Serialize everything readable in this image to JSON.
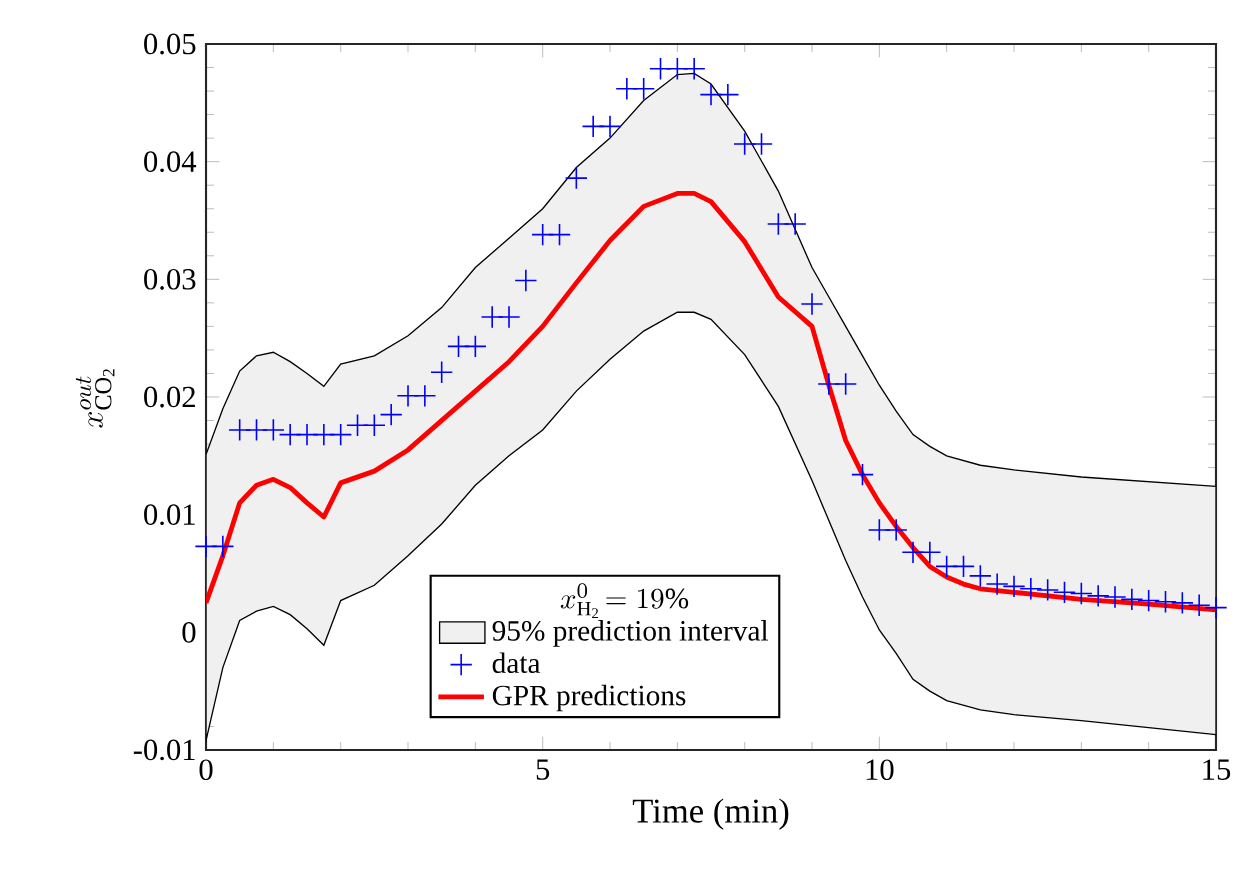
{
  "chart_data": {
    "type": "line",
    "xlabel": "Time (min)",
    "ylabel": "x^{out}_{\\mathrm{CO_2}}",
    "legend_title": "x^{0}_{\\mathrm{H_2}}\\!= 19\\%",
    "annotations": [
      "95% prediction interval"
    ],
    "xlim": [
      0,
      15
    ],
    "ylim": [
      -0.01,
      0.05
    ],
    "xticks": [
      0,
      5,
      10,
      15
    ],
    "yticks": [
      -0.01,
      0,
      0.01,
      0.02,
      0.03,
      0.04,
      0.05
    ],
    "grid": false,
    "legend": "bottom",
    "series": [
      {
        "type": "scatter",
        "name": "data",
        "color": "#0000ff",
        "marker": "cross",
        "x": [
          0,
          0.25,
          0.5,
          0.75,
          1,
          1.25,
          1.5,
          1.75,
          2,
          2.25,
          2.5,
          2.75,
          3,
          3.25,
          3.5,
          3.75,
          4,
          4.25,
          4.5,
          4.75,
          5,
          5.25,
          5.5,
          5.75,
          6,
          6.25,
          6.5,
          6.75,
          7,
          7.25,
          7.5,
          7.75,
          8,
          8.25,
          8.5,
          8.75,
          9,
          9.25,
          9.5,
          9.75,
          10,
          10.25,
          10.5,
          10.75,
          11,
          11.25,
          11.5,
          11.75,
          12,
          12.25,
          12.5,
          12.75,
          13,
          13.25,
          13.5,
          13.75,
          14,
          14.25,
          14.5,
          14.75,
          15
        ],
        "values": [
          0.0073,
          0.0073,
          0.0172,
          0.0172,
          0.0172,
          0.0168,
          0.0168,
          0.0168,
          0.0168,
          0.0176,
          0.0176,
          0.0185,
          0.0201,
          0.0201,
          0.0221,
          0.0243,
          0.0243,
          0.0268,
          0.0268,
          0.0299,
          0.0338,
          0.0338,
          0.0386,
          0.043,
          0.043,
          0.0462,
          0.0462,
          0.0479,
          0.0479,
          0.0479,
          0.0457,
          0.0457,
          0.0415,
          0.0415,
          0.0347,
          0.0347,
          0.0279,
          0.0211,
          0.0211,
          0.0134,
          0.0087,
          0.0087,
          0.0068,
          0.0068,
          0.0056,
          0.0056,
          0.0048,
          0.0041,
          0.0039,
          0.0037,
          0.0036,
          0.0034,
          0.0033,
          0.0031,
          0.003,
          0.0028,
          0.0027,
          0.0026,
          0.0025,
          0.0023,
          0.0021
        ]
      },
      {
        "name": "GPR predictions",
        "color": "#ff0000",
        "line_style": "solid",
        "x": [
          0,
          0.25,
          0.5,
          0.75,
          1,
          1.25,
          1.5,
          1.75,
          2,
          2.5,
          3,
          3.5,
          4,
          4.5,
          5,
          5.5,
          6,
          6.5,
          7,
          7.25,
          7.5,
          8,
          8.5,
          9,
          9.25,
          9.5,
          9.75,
          10,
          10.25,
          10.5,
          10.75,
          11,
          11.25,
          11.5,
          12,
          13,
          14,
          15
        ],
        "values": [
          0.0025,
          0.0065,
          0.011,
          0.0125,
          0.013,
          0.0123,
          0.011,
          0.0098,
          0.0127,
          0.0137,
          0.0155,
          0.018,
          0.0205,
          0.023,
          0.026,
          0.0297,
          0.0333,
          0.0362,
          0.0373,
          0.0373,
          0.0366,
          0.0332,
          0.0285,
          0.026,
          0.021,
          0.0163,
          0.0134,
          0.011,
          0.009,
          0.0072,
          0.0056,
          0.0047,
          0.0041,
          0.0037,
          0.0034,
          0.0028,
          0.0024,
          0.0019
        ],
        "upper": [
          0.0151,
          0.019,
          0.0222,
          0.0235,
          0.0238,
          0.023,
          0.022,
          0.0209,
          0.0228,
          0.0235,
          0.0252,
          0.0276,
          0.031,
          0.0335,
          0.036,
          0.0395,
          0.042,
          0.0452,
          0.0474,
          0.0475,
          0.0466,
          0.0426,
          0.0375,
          0.031,
          0.0285,
          0.026,
          0.0235,
          0.021,
          0.0188,
          0.0168,
          0.0158,
          0.015,
          0.0146,
          0.0142,
          0.0138,
          0.0132,
          0.0128,
          0.0124
        ],
        "lower": [
          -0.0092,
          -0.003,
          0.001,
          0.0018,
          0.0022,
          0.0015,
          0.0003,
          -0.0011,
          0.0027,
          0.004,
          0.0065,
          0.0092,
          0.0125,
          0.015,
          0.0172,
          0.0205,
          0.0232,
          0.0256,
          0.0272,
          0.0272,
          0.0266,
          0.0236,
          0.0192,
          0.0129,
          0.0095,
          0.0061,
          0.003,
          0.0002,
          -0.0018,
          -0.004,
          -0.005,
          -0.0058,
          -0.0062,
          -0.0066,
          -0.007,
          -0.0075,
          -0.0081,
          -0.0087
        ]
      }
    ]
  }
}
